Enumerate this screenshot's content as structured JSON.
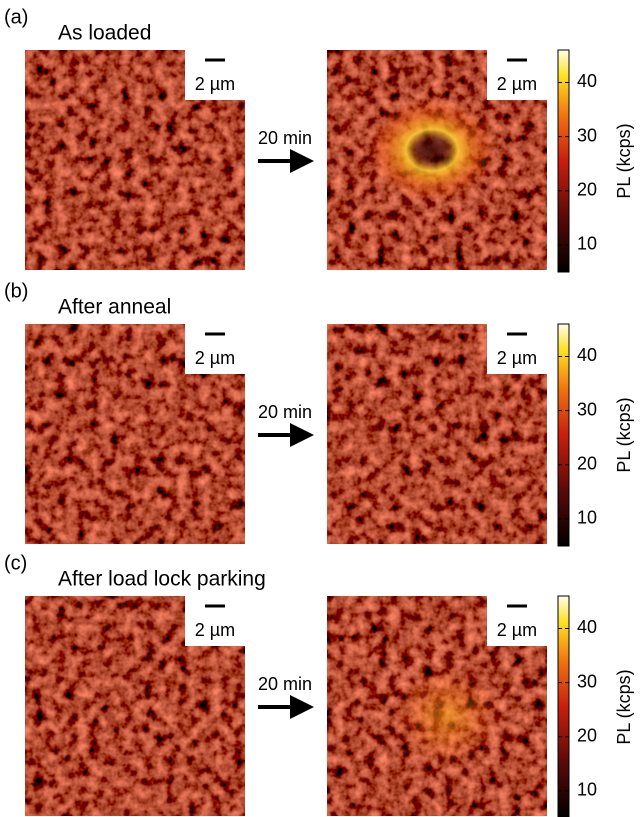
{
  "panels": [
    {
      "label": "(a)",
      "title": "As loaded",
      "scale_bar_left": "2 µm",
      "scale_bar_right": "2 µm",
      "arrow": "20 min"
    },
    {
      "label": "(b)",
      "title": "After anneal",
      "scale_bar_left": "2 µm",
      "scale_bar_right": "2 µm",
      "arrow": "20 min"
    },
    {
      "label": "(c)",
      "title": "After load lock parking",
      "scale_bar_left": "2 µm",
      "scale_bar_right": "2 µm",
      "arrow": "20 min"
    }
  ],
  "colorbar": {
    "label": "PL (kcps)",
    "range": [
      5,
      46
    ],
    "ticks": [
      10,
      20,
      30,
      40
    ]
  }
}
